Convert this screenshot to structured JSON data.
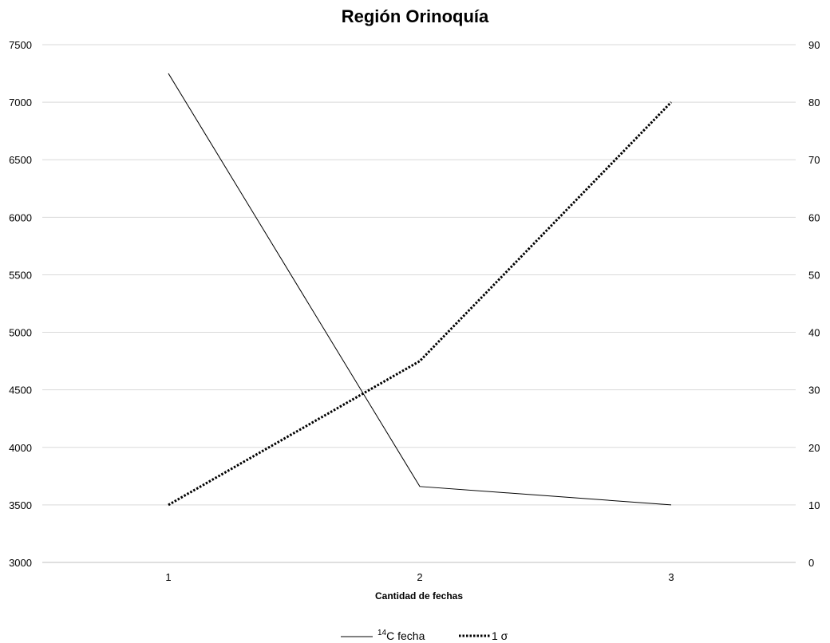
{
  "chart_data": {
    "type": "line",
    "title": "Región Orinoquía",
    "xlabel": "Cantidad de fechas",
    "categories": [
      "1",
      "2",
      "3"
    ],
    "y_left": {
      "ylim": [
        3000,
        7500
      ],
      "ticks": [
        "3000",
        "3500",
        "4000",
        "4500",
        "5000",
        "5500",
        "6000",
        "6500",
        "7000",
        "7500"
      ]
    },
    "y_right": {
      "ylim": [
        0,
        90
      ],
      "ticks": [
        "0",
        "10",
        "20",
        "30",
        "40",
        "50",
        "60",
        "70",
        "80",
        "90"
      ]
    },
    "grid": true,
    "legend_position": "bottom",
    "series": [
      {
        "name_sup": "14",
        "name": "C fecha",
        "axis": "left",
        "style": "solid",
        "color": "#000000",
        "values": [
          7250,
          3660,
          3500
        ]
      },
      {
        "name": "1 σ",
        "axis": "right",
        "style": "dotted",
        "color": "#000000",
        "values": [
          10,
          35,
          80
        ]
      }
    ]
  }
}
